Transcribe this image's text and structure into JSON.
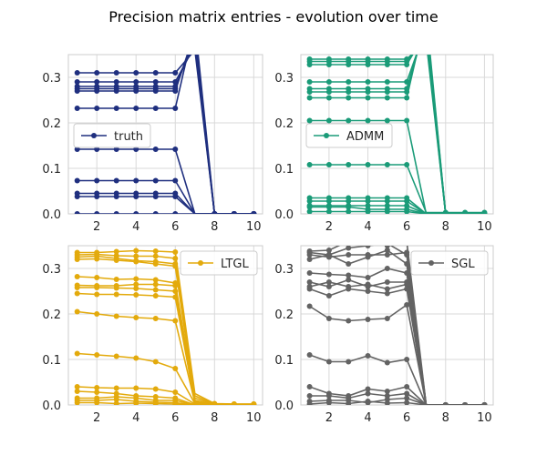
{
  "figure": {
    "title": "Precision matrix entries - evolution over time"
  },
  "chart_data": [
    {
      "type": "line",
      "legend": "truth",
      "legend_loc": "center-left",
      "color": "#1f2f7f",
      "x": [
        1,
        2,
        3,
        4,
        5,
        6,
        7,
        8,
        9,
        10
      ],
      "xticks": [
        2,
        4,
        6,
        8,
        10
      ],
      "yticks": [
        0.0,
        0.1,
        0.2,
        0.3
      ],
      "xlim": [
        0.55,
        10.45
      ],
      "ylim": [
        0,
        0.35
      ],
      "series": [
        {
          "values": [
            0.31,
            0.31,
            0.31,
            0.31,
            0.31,
            0.31,
            0,
            0,
            0,
            0
          ],
          "y7": 0.36
        },
        {
          "values": [
            0.29,
            0.29,
            0.29,
            0.29,
            0.29,
            0.29,
            0,
            0,
            0,
            0
          ],
          "y7": 0.37
        },
        {
          "values": [
            0.28,
            0.28,
            0.28,
            0.28,
            0.28,
            0.28,
            0,
            0,
            0,
            0
          ],
          "y7": 0.38
        },
        {
          "values": [
            0.275,
            0.275,
            0.275,
            0.275,
            0.275,
            0.275,
            0,
            0,
            0,
            0
          ],
          "y7": 0.39
        },
        {
          "values": [
            0.27,
            0.27,
            0.27,
            0.27,
            0.27,
            0.27,
            0,
            0,
            0,
            0
          ],
          "y7": 0.4
        },
        {
          "values": [
            0.232,
            0.232,
            0.232,
            0.232,
            0.232,
            0.232,
            0,
            0,
            0,
            0
          ],
          "y7": 0.42
        },
        {
          "values": [
            0.142,
            0.142,
            0.142,
            0.142,
            0.142,
            0.142,
            0,
            0,
            0,
            0
          ],
          "y7": 0
        },
        {
          "values": [
            0.073,
            0.073,
            0.073,
            0.073,
            0.073,
            0.073,
            0,
            0,
            0,
            0
          ],
          "y7": 0
        },
        {
          "values": [
            0.045,
            0.045,
            0.045,
            0.045,
            0.045,
            0.045,
            0,
            0,
            0,
            0
          ],
          "y7": 0
        },
        {
          "values": [
            0.038,
            0.038,
            0.038,
            0.038,
            0.038,
            0.038,
            0,
            0,
            0,
            0
          ],
          "y7": 0
        },
        {
          "values": [
            0,
            0,
            0,
            0,
            0,
            0,
            0,
            0,
            0,
            0
          ],
          "y7": 0
        }
      ]
    },
    {
      "type": "line",
      "legend": "ADMM",
      "legend_loc": "center-left",
      "color": "#1a9b78",
      "x": [
        1,
        2,
        3,
        4,
        5,
        6,
        7,
        8,
        9,
        10
      ],
      "xticks": [
        2,
        4,
        6,
        8,
        10
      ],
      "yticks": [
        0.0,
        0.1,
        0.2,
        0.3
      ],
      "xlim": [
        0.55,
        10.45
      ],
      "ylim": [
        0,
        0.35
      ],
      "series": [
        {
          "values": [
            0.34,
            0.34,
            0.34,
            0.34,
            0.34,
            0.34,
            0,
            0,
            0,
            0
          ],
          "y7": 0.38
        },
        {
          "values": [
            0.335,
            0.335,
            0.335,
            0.335,
            0.335,
            0.335,
            0,
            0,
            0,
            0
          ],
          "y7": 0.39
        },
        {
          "values": [
            0.328,
            0.328,
            0.328,
            0.328,
            0.328,
            0.328,
            0,
            0,
            0,
            0
          ],
          "y7": 0.4
        },
        {
          "values": [
            0.29,
            0.29,
            0.29,
            0.29,
            0.29,
            0.29,
            0,
            0,
            0,
            0
          ],
          "y7": 0.41
        },
        {
          "values": [
            0.275,
            0.275,
            0.275,
            0.275,
            0.275,
            0.275,
            0,
            0,
            0,
            0
          ],
          "y7": 0.42
        },
        {
          "values": [
            0.268,
            0.268,
            0.268,
            0.268,
            0.268,
            0.268,
            0,
            0,
            0,
            0
          ],
          "y7": 0.43
        },
        {
          "values": [
            0.255,
            0.255,
            0.255,
            0.255,
            0.255,
            0.255,
            0,
            0,
            0,
            0
          ],
          "y7": 0.44
        },
        {
          "values": [
            0.205,
            0.205,
            0.205,
            0.205,
            0.205,
            0.205,
            0,
            0,
            0,
            0
          ],
          "y7": 0
        },
        {
          "values": [
            0.108,
            0.108,
            0.108,
            0.108,
            0.108,
            0.108,
            0.003,
            0.003,
            0.003,
            0.003
          ],
          "y7": 0.003
        },
        {
          "values": [
            0.035,
            0.035,
            0.035,
            0.035,
            0.035,
            0.035,
            0,
            0,
            0,
            0
          ],
          "y7": 0
        },
        {
          "values": [
            0.028,
            0.028,
            0.028,
            0.028,
            0.028,
            0.028,
            0,
            0,
            0,
            0
          ],
          "y7": 0
        },
        {
          "values": [
            0.018,
            0.018,
            0.018,
            0.018,
            0.018,
            0.018,
            0,
            0,
            0,
            0
          ],
          "y7": 0
        },
        {
          "values": [
            0.005,
            0.005,
            0.005,
            0.005,
            0.005,
            0.005,
            0,
            0,
            0,
            0
          ],
          "y7": 0
        },
        {
          "values": [
            0.015,
            0.015,
            0.015,
            0.01,
            0.01,
            0.01,
            0,
            0,
            0,
            0
          ],
          "y7": 0
        }
      ]
    },
    {
      "type": "line",
      "legend": "LTGL",
      "legend_loc": "upper-right",
      "color": "#e3aa0c",
      "x": [
        1,
        2,
        3,
        4,
        5,
        6,
        7,
        8,
        9,
        10
      ],
      "xticks": [
        2,
        4,
        6,
        8,
        10
      ],
      "yticks": [
        0.0,
        0.1,
        0.2,
        0.3
      ],
      "xlim": [
        0.55,
        10.45
      ],
      "ylim": [
        0,
        0.35
      ],
      "series": [
        {
          "values": [
            0.335,
            0.335,
            0.337,
            0.339,
            0.338,
            0.336,
            0.025,
            0.003,
            0.002,
            0.002
          ],
          "y7": 0.025
        },
        {
          "values": [
            0.33,
            0.331,
            0.328,
            0.327,
            0.327,
            0.322,
            0.02,
            0.002,
            0.002,
            0.002
          ],
          "y7": 0.02
        },
        {
          "values": [
            0.325,
            0.327,
            0.322,
            0.317,
            0.315,
            0.31,
            0.015,
            0.001,
            0.001,
            0.001
          ],
          "y7": 0.015
        },
        {
          "values": [
            0.32,
            0.321,
            0.318,
            0.315,
            0.31,
            0.305,
            0.01,
            0,
            0,
            0
          ],
          "y7": 0.01
        },
        {
          "values": [
            0.282,
            0.28,
            0.276,
            0.277,
            0.275,
            0.268,
            0.01,
            0,
            0,
            0
          ],
          "y7": 0.01
        },
        {
          "values": [
            0.263,
            0.262,
            0.262,
            0.265,
            0.265,
            0.262,
            0.008,
            0,
            0,
            0
          ],
          "y7": 0.008
        },
        {
          "values": [
            0.258,
            0.258,
            0.257,
            0.256,
            0.253,
            0.25,
            0.005,
            0,
            0,
            0
          ],
          "y7": 0.005
        },
        {
          "values": [
            0.245,
            0.243,
            0.243,
            0.242,
            0.24,
            0.237,
            0.005,
            0,
            0,
            0
          ],
          "y7": 0.005
        },
        {
          "values": [
            0.205,
            0.2,
            0.195,
            0.192,
            0.19,
            0.185,
            0.005,
            0,
            0,
            0
          ],
          "y7": 0.005
        },
        {
          "values": [
            0.113,
            0.11,
            0.107,
            0.103,
            0.095,
            0.08,
            0.003,
            0,
            0,
            0
          ],
          "y7": 0.003
        },
        {
          "values": [
            0.04,
            0.038,
            0.037,
            0.037,
            0.035,
            0.028,
            0.002,
            0,
            0,
            0
          ],
          "y7": 0.002
        },
        {
          "values": [
            0.03,
            0.028,
            0.025,
            0.02,
            0.018,
            0.015,
            0,
            0,
            0,
            0
          ],
          "y7": 0
        },
        {
          "values": [
            0.015,
            0.015,
            0.018,
            0.015,
            0.01,
            0.01,
            0,
            0,
            0,
            0
          ],
          "y7": 0
        },
        {
          "values": [
            0.01,
            0.01,
            0.012,
            0.008,
            0.006,
            0.005,
            0,
            0,
            0,
            0
          ],
          "y7": 0
        },
        {
          "values": [
            0.005,
            0.005,
            0.003,
            0.004,
            0.003,
            0.002,
            0,
            0,
            0,
            0
          ],
          "y7": 0
        }
      ]
    },
    {
      "type": "line",
      "legend": "SGL",
      "legend_loc": "upper-right",
      "color": "#636363",
      "x": [
        1,
        2,
        3,
        4,
        5,
        6,
        7,
        8,
        9,
        10
      ],
      "xticks": [
        2,
        4,
        6,
        8,
        10
      ],
      "yticks": [
        0.0,
        0.1,
        0.2,
        0.3
      ],
      "xlim": [
        0.55,
        10.45
      ],
      "ylim": [
        0,
        0.35
      ],
      "series": [
        {
          "values": [
            0.338,
            0.34,
            0.36,
            0.37,
            0.35,
            0.36,
            0,
            0,
            0,
            0
          ],
          "y7": 0
        },
        {
          "values": [
            0.335,
            0.33,
            0.345,
            0.35,
            0.355,
            0.33,
            0,
            0,
            0,
            0
          ],
          "y7": 0
        },
        {
          "values": [
            0.33,
            0.325,
            0.33,
            0.33,
            0.33,
            0.335,
            0,
            0,
            0,
            0
          ],
          "y7": 0
        },
        {
          "values": [
            0.32,
            0.33,
            0.31,
            0.325,
            0.34,
            0.31,
            0,
            0,
            0,
            0
          ],
          "y7": 0
        },
        {
          "values": [
            0.29,
            0.287,
            0.285,
            0.28,
            0.3,
            0.29,
            0,
            0,
            0,
            0
          ],
          "y7": 0
        },
        {
          "values": [
            0.27,
            0.26,
            0.275,
            0.26,
            0.27,
            0.27,
            0,
            0,
            0,
            0
          ],
          "y7": 0
        },
        {
          "values": [
            0.26,
            0.27,
            0.26,
            0.265,
            0.255,
            0.265,
            0,
            0,
            0,
            0
          ],
          "y7": 0
        },
        {
          "values": [
            0.255,
            0.24,
            0.255,
            0.25,
            0.245,
            0.255,
            0,
            0,
            0,
            0
          ],
          "y7": 0
        },
        {
          "values": [
            0.217,
            0.19,
            0.185,
            0.188,
            0.19,
            0.22,
            0,
            0,
            0,
            0
          ],
          "y7": 0
        },
        {
          "values": [
            0.11,
            0.095,
            0.095,
            0.108,
            0.093,
            0.1,
            0,
            0,
            0,
            0
          ],
          "y7": 0
        },
        {
          "values": [
            0.04,
            0.025,
            0.02,
            0.035,
            0.03,
            0.04,
            0,
            0,
            0,
            0
          ],
          "y7": 0
        },
        {
          "values": [
            0.02,
            0.02,
            0.015,
            0.025,
            0.02,
            0.025,
            0,
            0,
            0,
            0
          ],
          "y7": 0
        },
        {
          "values": [
            0.008,
            0.01,
            0.01,
            0.005,
            0.012,
            0.015,
            0,
            0,
            0,
            0
          ],
          "y7": 0
        },
        {
          "values": [
            0.002,
            0.005,
            0.003,
            0.008,
            0.004,
            0.005,
            0,
            0,
            0,
            0
          ],
          "y7": 0
        }
      ]
    }
  ]
}
